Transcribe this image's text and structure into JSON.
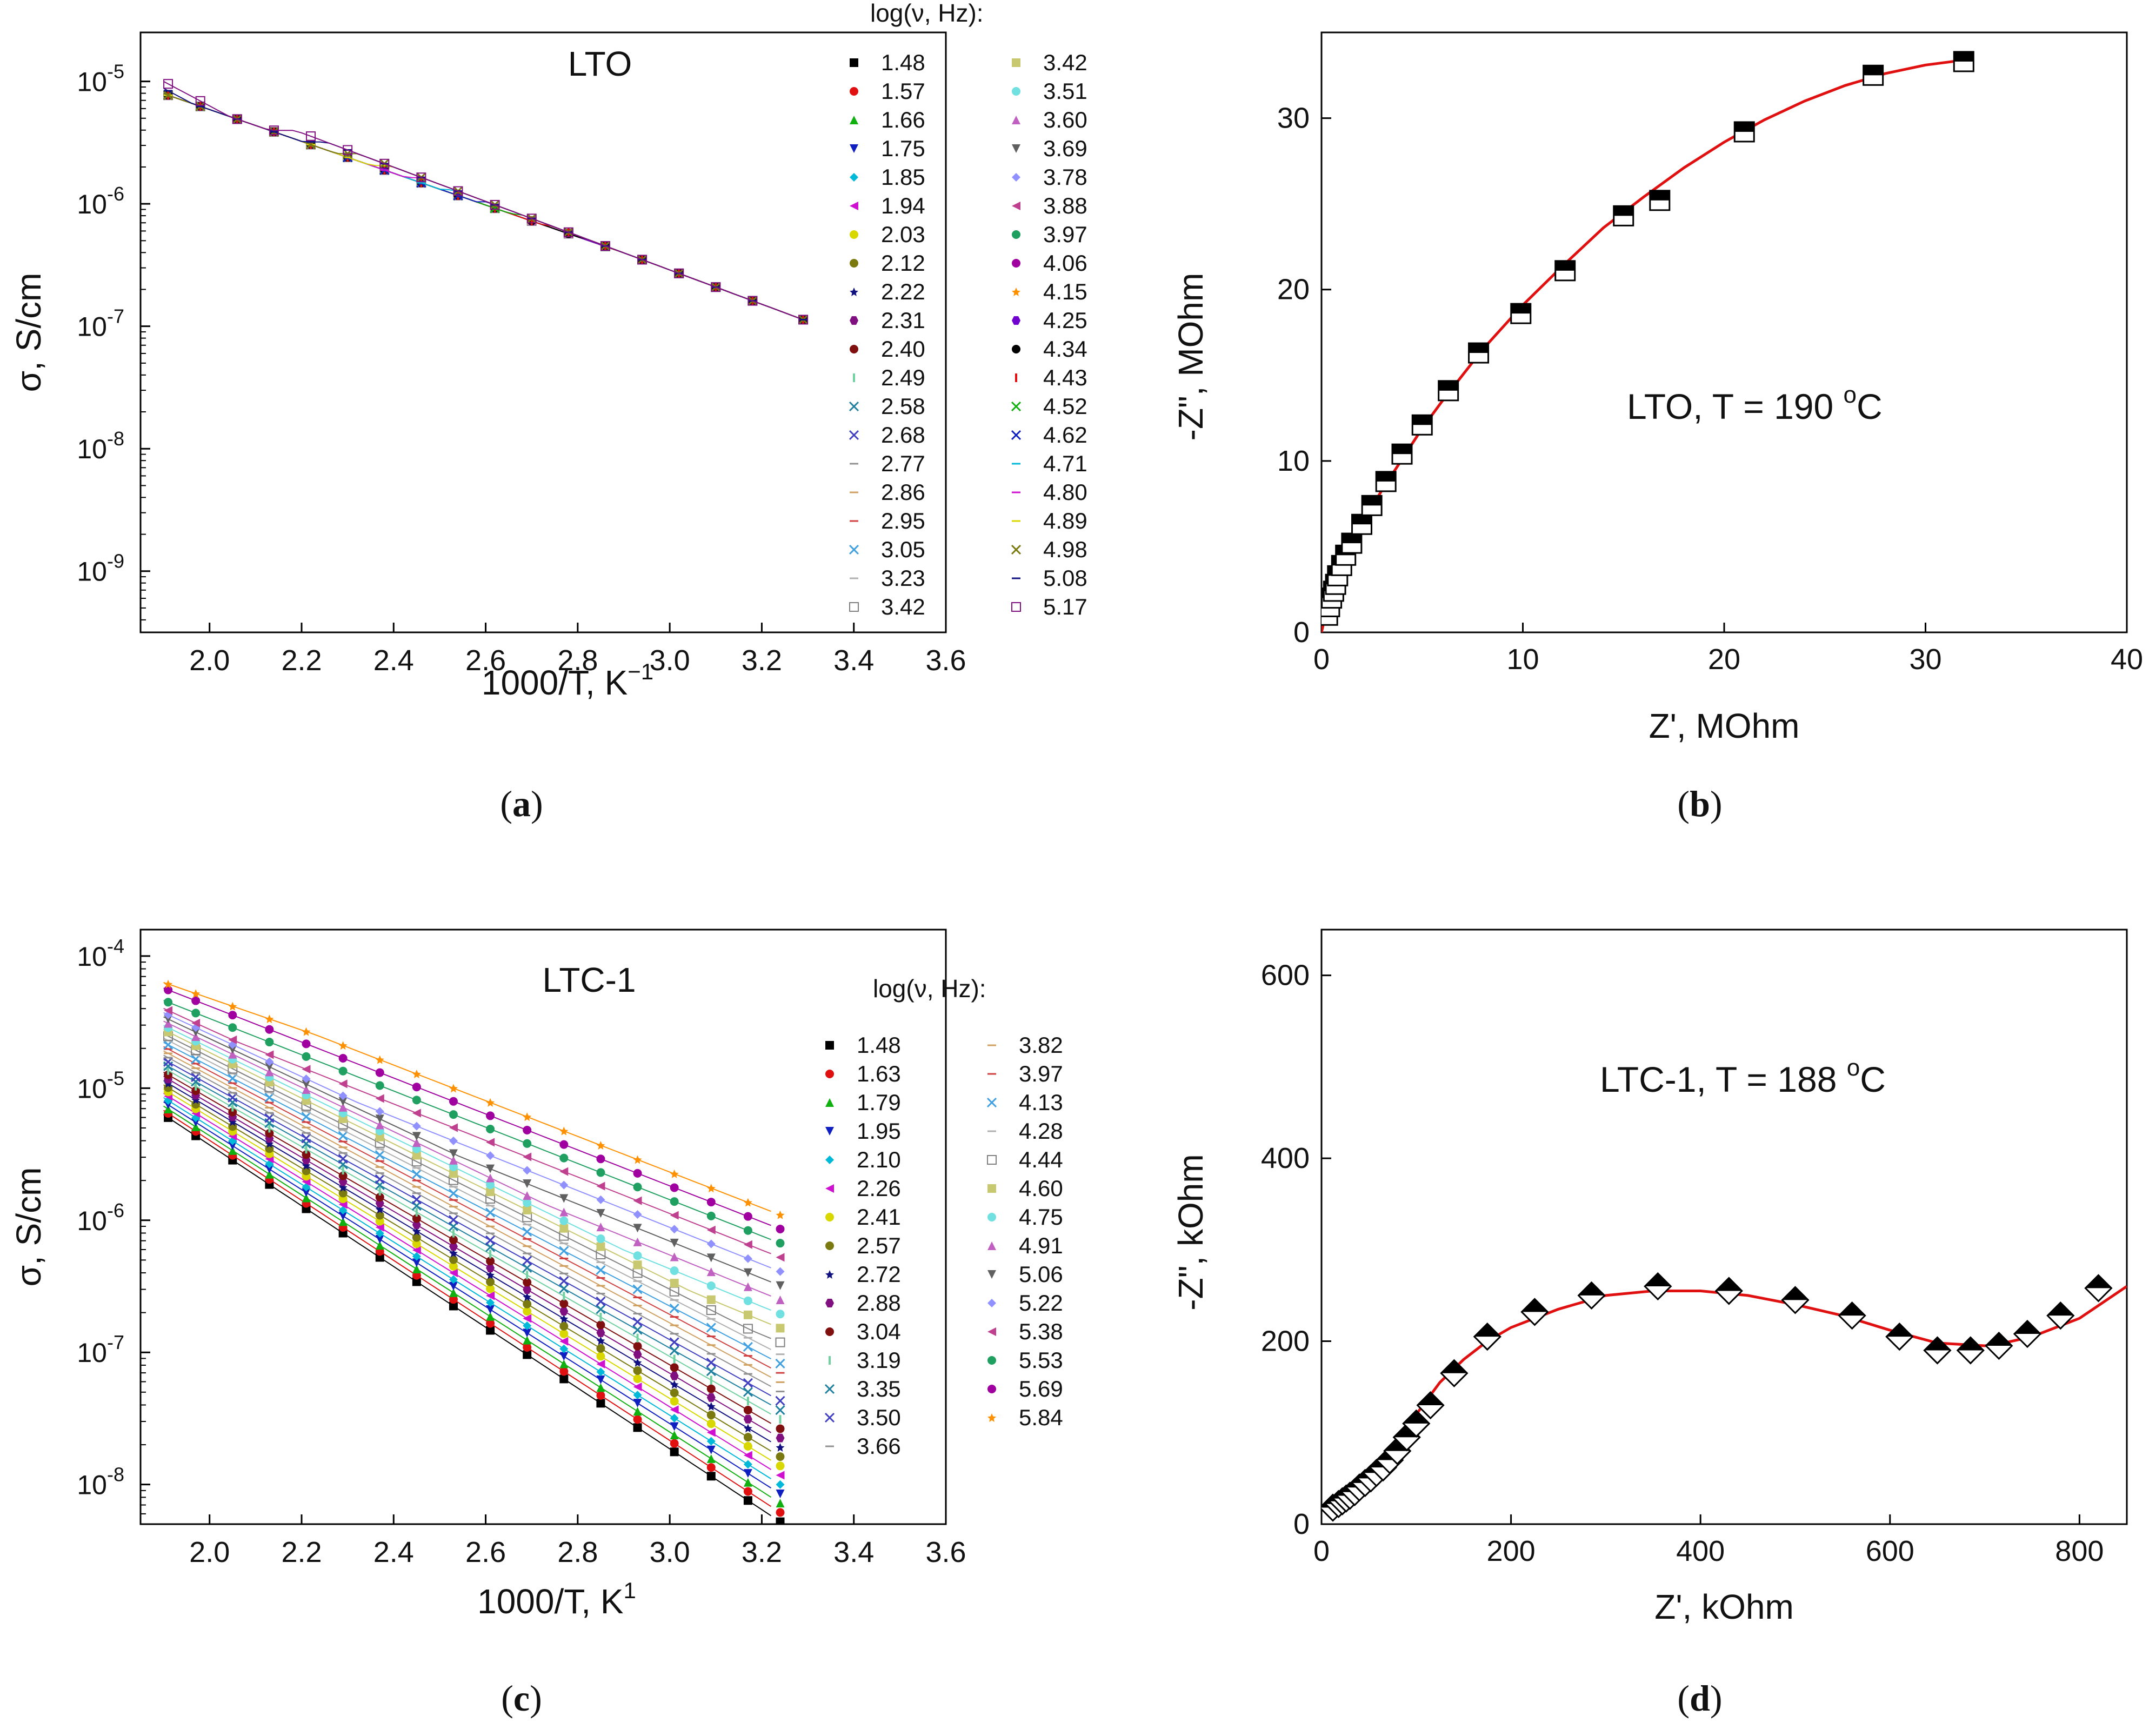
{
  "legend_title": "log(ν, Hz):",
  "colors": {
    "fit_line": "#e01010",
    "marker_fill": "#000000",
    "marker_stroke": "#000000"
  },
  "chart_data": [
    {
      "id": "a",
      "caption": "a",
      "type": "scatter",
      "title": "LTO",
      "xlabel": "1000/T, K",
      "xlabel_sup": "−1",
      "ylabel": "σ, S/cm",
      "yscale": "log",
      "xlim": [
        1.85,
        3.6
      ],
      "ylim_log10": [
        -9.5,
        -4.6
      ],
      "x_ticks": [
        "2.0",
        "2.2",
        "2.4",
        "2.6",
        "2.8",
        "3.0",
        "3.2",
        "3.4",
        "3.6"
      ],
      "y_ticks_exp": [
        "-5",
        "-6",
        "-7",
        "-8",
        "-9"
      ],
      "x_temps": [
        1.91,
        1.98,
        2.06,
        2.14,
        2.22,
        2.3,
        2.38,
        2.46,
        2.54,
        2.62,
        2.7,
        2.78,
        2.86,
        2.94,
        3.02,
        3.1,
        3.18,
        3.29
      ],
      "legend_columns": [
        [
          "1.48",
          "1.57",
          "1.66",
          "1.75",
          "1.85",
          "1.94",
          "2.03",
          "2.12",
          "2.22",
          "2.31",
          "2.40",
          "2.49",
          "2.58",
          "2.68",
          "2.77",
          "2.86",
          "2.95",
          "3.05",
          "3.23",
          "3.42"
        ],
        [
          "3.42",
          "3.51",
          "3.60",
          "3.69",
          "3.78",
          "3.88",
          "3.97",
          "4.06",
          "4.15",
          "4.25",
          "4.34",
          "4.43",
          "4.52",
          "4.62",
          "4.71",
          "4.80",
          "4.89",
          "4.98",
          "5.08",
          "5.17"
        ]
      ],
      "series_params": {
        "hf_intercept": -5.0,
        "hf_slope": -1.4,
        "dc_intercept": -6.4,
        "dc_slope": -2.1,
        "lf_floor": -9.2
      }
    },
    {
      "id": "b",
      "caption": "b",
      "type": "scatter",
      "annotation": "LTO, T = 190 ",
      "annotation_sup": "o",
      "annotation_unit": "C",
      "xlabel": "Z', MOhm",
      "ylabel": "-Z\", MOhm",
      "xlim": [
        0,
        40
      ],
      "ylim": [
        0,
        35
      ],
      "x_ticks": [
        "0",
        "10",
        "20",
        "30",
        "40"
      ],
      "y_ticks": [
        "0",
        "10",
        "20",
        "30"
      ],
      "series": [
        {
          "name": "data",
          "x": [
            0.3,
            0.4,
            0.5,
            0.6,
            0.7,
            0.8,
            1.0,
            1.2,
            1.5,
            2.0,
            2.5,
            3.2,
            4.0,
            5.0,
            6.3,
            7.8,
            9.9,
            12.1,
            15.0,
            16.8,
            21.0,
            27.4,
            31.9
          ],
          "y": [
            1.0,
            1.5,
            2.0,
            2.4,
            2.8,
            3.3,
            3.9,
            4.5,
            5.2,
            6.3,
            7.4,
            8.8,
            10.4,
            12.1,
            14.1,
            16.3,
            18.6,
            21.1,
            24.3,
            25.2,
            29.2,
            32.5,
            33.3
          ]
        },
        {
          "name": "fit",
          "x": [
            0,
            0.5,
            1,
            2,
            3,
            4,
            5,
            6,
            8,
            10,
            12,
            14,
            16,
            18,
            20,
            22,
            24,
            26,
            28,
            30,
            32
          ],
          "y": [
            0,
            2.6,
            4.0,
            6.3,
            8.3,
            10.1,
            11.9,
            13.5,
            16.5,
            19.1,
            21.4,
            23.6,
            25.4,
            27.1,
            28.6,
            29.9,
            31.0,
            31.9,
            32.6,
            33.1,
            33.4
          ]
        }
      ]
    },
    {
      "id": "c",
      "caption": "c",
      "type": "scatter",
      "title": "LTC-1",
      "xlabel": "1000/T, K",
      "xlabel_sup": "1",
      "ylabel": "σ, S/cm",
      "yscale": "log",
      "xlim": [
        1.85,
        3.6
      ],
      "ylim_log10": [
        -8.3,
        -3.8
      ],
      "x_ticks": [
        "2.0",
        "2.2",
        "2.4",
        "2.6",
        "2.8",
        "3.0",
        "3.2",
        "3.4",
        "3.6"
      ],
      "y_ticks_exp": [
        "-4",
        "-5",
        "-6",
        "-7",
        "-8"
      ],
      "x_temps": [
        1.91,
        1.97,
        2.05,
        2.13,
        2.21,
        2.29,
        2.37,
        2.45,
        2.53,
        2.61,
        2.69,
        2.77,
        2.85,
        2.93,
        3.01,
        3.09,
        3.17,
        3.24
      ],
      "legend_columns": [
        [
          "1.48",
          "1.63",
          "1.79",
          "1.95",
          "2.10",
          "2.26",
          "2.41",
          "2.57",
          "2.72",
          "2.88",
          "3.04",
          "3.19",
          "3.35",
          "3.50",
          "3.66"
        ],
        [
          "3.82",
          "3.97",
          "4.13",
          "4.28",
          "4.44",
          "4.60",
          "4.75",
          "4.91",
          "5.06",
          "5.22",
          "5.38",
          "5.53",
          "5.69",
          "5.84"
        ]
      ],
      "series_params": {
        "hf_intercept": -4.15,
        "hf_slope": -1.4,
        "lf_intercept": -5.2,
        "lf_slope": -2.3
      }
    },
    {
      "id": "d",
      "caption": "d",
      "type": "scatter",
      "annotation": "LTC-1, T = 188 ",
      "annotation_sup": "o",
      "annotation_unit": "C",
      "xlabel": "Z', kOhm",
      "ylabel": "-Z\", kOhm",
      "xlim": [
        0,
        850
      ],
      "ylim": [
        0,
        650
      ],
      "x_ticks": [
        "0",
        "200",
        "400",
        "600",
        "800"
      ],
      "y_ticks": [
        "0",
        "200",
        "400",
        "600"
      ],
      "series": [
        {
          "name": "data",
          "x": [
            12,
            18,
            22,
            26,
            30,
            35,
            40,
            46,
            52,
            58,
            65,
            72,
            80,
            90,
            100,
            115,
            140,
            175,
            225,
            285,
            355,
            430,
            500,
            560,
            610,
            650,
            685,
            715,
            745,
            780,
            820
          ],
          "y": [
            18,
            22,
            25,
            28,
            31,
            35,
            40,
            45,
            50,
            56,
            62,
            70,
            80,
            95,
            110,
            130,
            165,
            205,
            232,
            250,
            260,
            255,
            245,
            228,
            205,
            190,
            190,
            195,
            208,
            228,
            258
          ]
        },
        {
          "name": "fit",
          "x": [
            0,
            20,
            40,
            60,
            80,
            100,
            125,
            150,
            175,
            200,
            250,
            300,
            350,
            400,
            450,
            500,
            550,
            600,
            650,
            700,
            720,
            750,
            800,
            850
          ],
          "y": [
            18,
            25,
            35,
            55,
            90,
            120,
            155,
            180,
            200,
            215,
            235,
            250,
            255,
            255,
            250,
            240,
            228,
            212,
            198,
            195,
            198,
            205,
            225,
            260
          ]
        }
      ]
    }
  ]
}
